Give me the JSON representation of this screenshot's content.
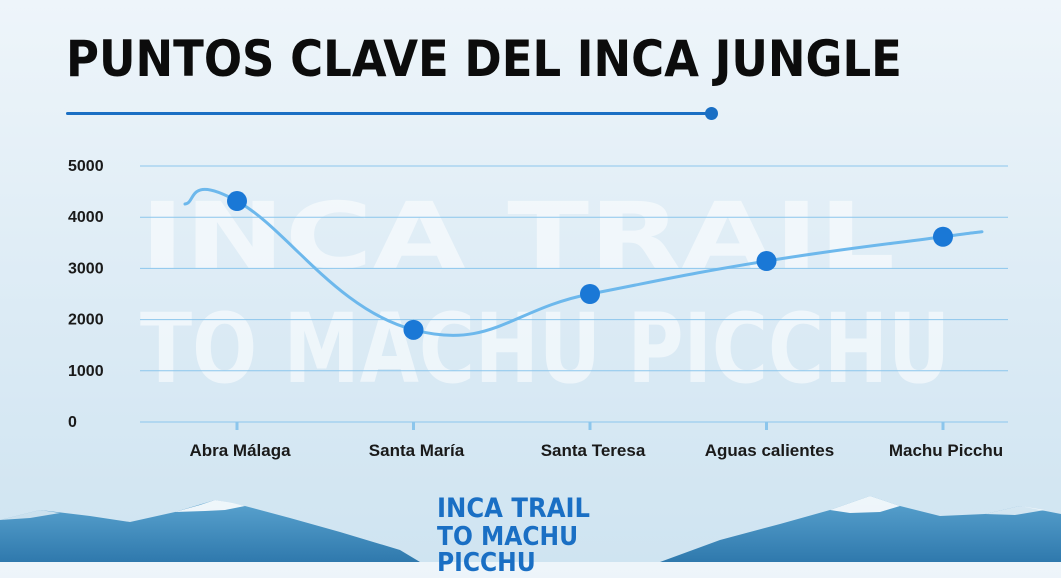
{
  "page": {
    "title": "PUNTOS CLAVE DEL INCA JUNGLE"
  },
  "watermark": {
    "line1": "INCA TRAIL",
    "line2": "TO MACHU PICCHU"
  },
  "logo": {
    "line1": "INCA TRAIL",
    "line2": "TO MACHU PICCHU"
  },
  "colors": {
    "accent": "#1a6fc4",
    "line": "#6db8ec",
    "grid": "#8cc6ec",
    "point": "#1a78d6"
  },
  "chart_data": {
    "type": "line",
    "title": "PUNTOS CLAVE DEL INCA JUNGLE",
    "xlabel": "",
    "ylabel": "",
    "categories": [
      "Abra Málaga",
      "Santa María",
      "Santa Teresa",
      "Aguas calientes",
      "Machu Picchu"
    ],
    "series": [
      {
        "values": [
          4316,
          1800,
          2500,
          3144,
          3618
        ]
      }
    ],
    "ylim": [
      0,
      5000
    ],
    "yticks": [
      0,
      1000,
      2000,
      3000,
      4000,
      5000
    ],
    "grid": true,
    "smooth": true,
    "legend": "none"
  }
}
